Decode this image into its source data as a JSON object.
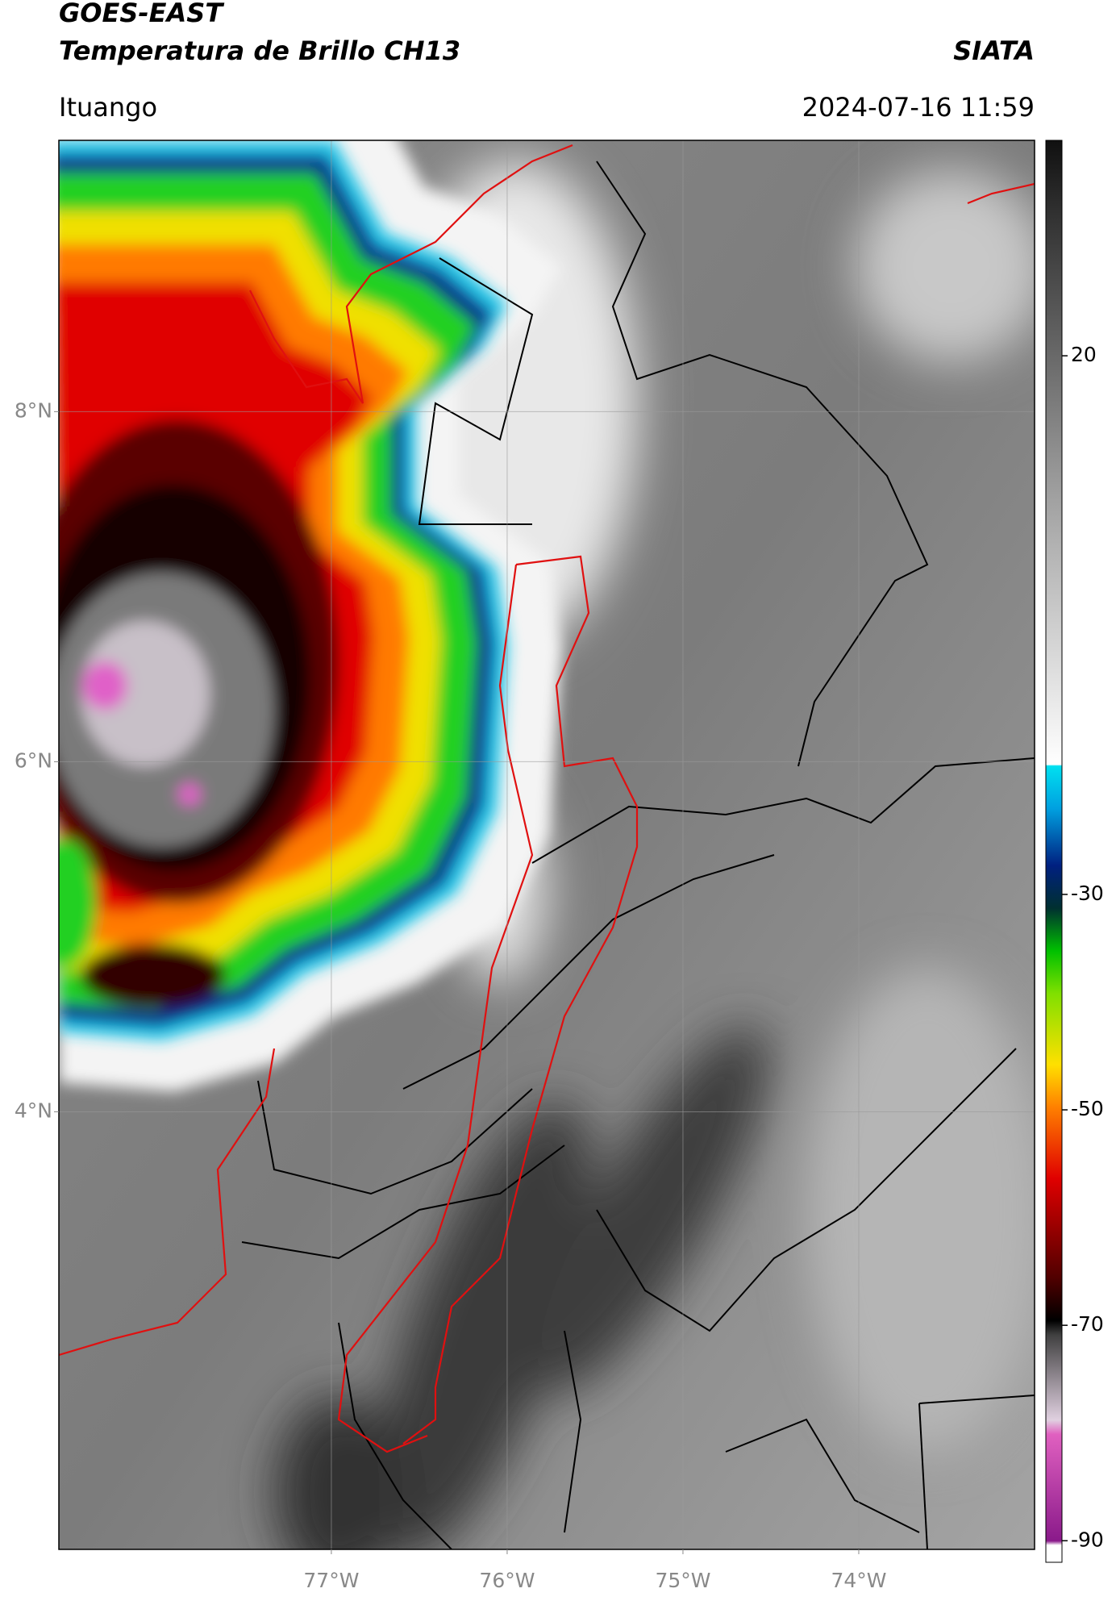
{
  "header": {
    "title": "GOES-EAST",
    "subtitle": "Temperatura de Brillo CH13",
    "source": "SIATA",
    "location": "Ituango",
    "datetime": "2024-07-16 11:59"
  },
  "map": {
    "lon_range": [
      -78.55,
      -73
    ],
    "lat_range": [
      1.5,
      9.55
    ],
    "lat_ticks": [
      {
        "value": 8,
        "label": "8°N"
      },
      {
        "value": 6,
        "label": "6°N"
      },
      {
        "value": 4,
        "label": "4°N"
      }
    ],
    "lon_ticks": [
      {
        "value": -77,
        "label": "77°W"
      },
      {
        "value": -76,
        "label": "76°W"
      },
      {
        "value": -75,
        "label": "75°W"
      },
      {
        "value": -74,
        "label": "74°W"
      }
    ],
    "grid": true
  },
  "colorbar": {
    "lim": [
      -92,
      40
    ],
    "ticks": [
      20,
      -30,
      -50,
      -70,
      -90
    ]
  }
}
